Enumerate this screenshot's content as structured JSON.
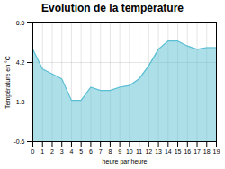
{
  "chart_data": {
    "type": "area",
    "title": "Evolution de la température",
    "xlabel": "heure par heure",
    "ylabel": "Température en °C",
    "x": [
      0,
      1,
      2,
      3,
      4,
      5,
      6,
      7,
      8,
      9,
      10,
      11,
      12,
      13,
      14,
      15,
      16,
      17,
      18,
      19
    ],
    "values": [
      5.0,
      3.8,
      3.5,
      3.2,
      1.9,
      1.9,
      2.7,
      2.5,
      2.5,
      2.7,
      2.8,
      3.2,
      4.0,
      5.0,
      5.5,
      5.5,
      5.2,
      5.0,
      5.1,
      5.1
    ],
    "color": "#5bbfd4",
    "xlim": [
      0,
      19
    ],
    "ylim": [
      -0.6,
      6.6
    ],
    "xticks": [
      0,
      1,
      2,
      3,
      4,
      5,
      6,
      7,
      8,
      9,
      10,
      11,
      12,
      13,
      14,
      15,
      16,
      17,
      18,
      19
    ],
    "yticks": [
      -0.6,
      1.8,
      4.2,
      6.6
    ],
    "grid": true
  }
}
